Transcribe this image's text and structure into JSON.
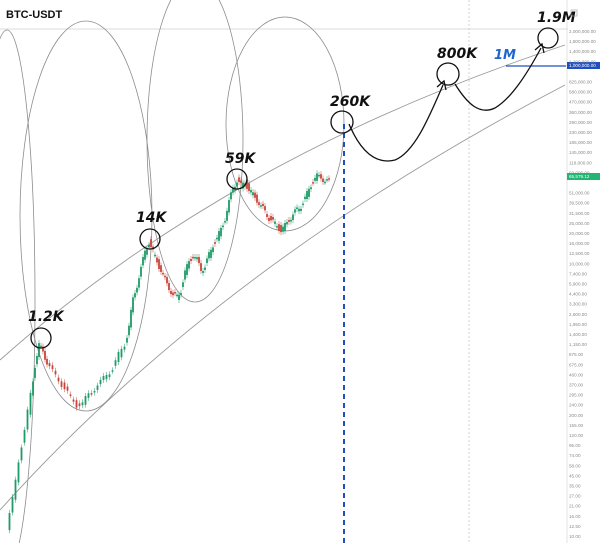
{
  "title": "BTC-USDT",
  "colors": {
    "up": "#1e9b68",
    "down": "#c8443a",
    "blue": "#1f4fbf",
    "price_tag": "#22b573",
    "accent_text": "#1f66cc"
  },
  "price_tag": "65,579.12",
  "blue_tag": "1,000,000.00",
  "blue_label": "1M",
  "chart_data": {
    "type": "line",
    "title": "BTC-USDT",
    "y_scale": "log",
    "ylim": [
      10,
      2600000
    ],
    "grid": false,
    "legend": "none",
    "y_tick_labels": [
      "2,000,000.00",
      "1,800,000.00",
      "1,400,000.00",
      "1,200,000.00",
      "1,000,000.00",
      "825,000.00",
      "580,000.00",
      "470,000.00",
      "360,000.00",
      "290,000.00",
      "230,000.00",
      "185,000.00",
      "145,000.00",
      "116,000.00",
      "93,000.00",
      "65,579.12",
      "51,000.00",
      "39,500.00",
      "31,500.00",
      "25,000.00",
      "20,000.00",
      "16,000.00",
      "12,500.00",
      "10,000.00",
      "7,400.00",
      "5,900.00",
      "4,400.00",
      "3,300.00",
      "2,600.00",
      "1,950.00",
      "1,400.00",
      "1,150.00",
      "875.00",
      "675.00",
      "460.00",
      "370.00",
      "295.00",
      "240.00",
      "200.00",
      "155.00",
      "120.00",
      "95.00",
      "74.00",
      "58.00",
      "45.00",
      "35.00",
      "27.00",
      "21.00",
      "16.00",
      "12.50",
      "10.00"
    ],
    "annotations": [
      {
        "label": "1.2K",
        "value": 1200
      },
      {
        "label": "14K",
        "value": 14000
      },
      {
        "label": "59K",
        "value": 59000
      },
      {
        "label": "260K",
        "value": 260000
      },
      {
        "label": "800K",
        "value": 800000
      },
      {
        "label": "1.9M",
        "value": 1900000
      }
    ],
    "reference_line": {
      "label": "1M",
      "value": 1000000
    }
  }
}
